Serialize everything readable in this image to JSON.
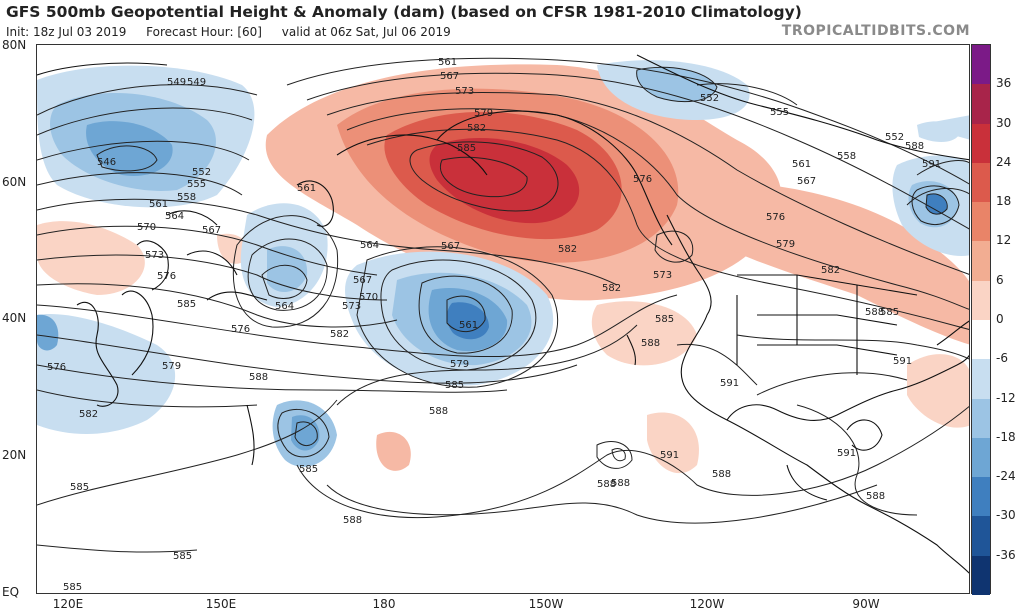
{
  "title": "GFS 500mb Geopotential Height & Anomaly (dam) (based on CFSR 1981-2010 Climatology)",
  "init": "Init: 18z Jul 03 2019",
  "forecast_hour": "Forecast Hour: [60]",
  "valid": "valid at 06z Sat, Jul 06 2019",
  "watermark": "TROPICALTIDBITS.COM",
  "lat_labels": [
    "80N",
    "60N",
    "40N",
    "20N",
    "EQ"
  ],
  "lon_labels": [
    "120E",
    "150E",
    "180",
    "150W",
    "120W",
    "90W"
  ],
  "colorbar": {
    "labels": [
      "36",
      "30",
      "24",
      "18",
      "12",
      "6",
      "0",
      "-6",
      "-12",
      "-18",
      "-24",
      "-30",
      "-36"
    ],
    "colors": [
      "#7b1a87",
      "#a8244a",
      "#c9303a",
      "#dc5a4c",
      "#e98468",
      "#f2ad92",
      "#fad4c5",
      "#ffffff",
      "#c8def0",
      "#9cc4e4",
      "#6ea6d4",
      "#3f7fbf",
      "#1f5598",
      "#0f3470"
    ]
  },
  "contour_labels": [
    {
      "t": "549"
    },
    {
      "t": "549"
    },
    {
      "t": "546"
    },
    {
      "t": "552"
    },
    {
      "t": "555"
    },
    {
      "t": "558"
    },
    {
      "t": "561"
    },
    {
      "t": "564"
    },
    {
      "t": "567"
    },
    {
      "t": "570"
    },
    {
      "t": "573"
    },
    {
      "t": "576"
    },
    {
      "t": "579"
    },
    {
      "t": "576"
    },
    {
      "t": "582"
    },
    {
      "t": "561"
    },
    {
      "t": "564"
    },
    {
      "t": "567"
    },
    {
      "t": "570"
    },
    {
      "t": "573"
    },
    {
      "t": "576"
    },
    {
      "t": "582"
    },
    {
      "t": "564"
    },
    {
      "t": "567"
    },
    {
      "t": "561"
    },
    {
      "t": "579"
    },
    {
      "t": "585"
    },
    {
      "t": "588"
    },
    {
      "t": "588"
    },
    {
      "t": "585"
    },
    {
      "t": "585"
    },
    {
      "t": "585"
    },
    {
      "t": "588"
    },
    {
      "t": "561"
    },
    {
      "t": "567"
    },
    {
      "t": "573"
    },
    {
      "t": "579"
    },
    {
      "t": "582"
    },
    {
      "t": "585"
    },
    {
      "t": "582"
    },
    {
      "t": "573"
    },
    {
      "t": "576"
    },
    {
      "t": "582"
    },
    {
      "t": "585"
    },
    {
      "t": "588"
    },
    {
      "t": "588"
    },
    {
      "t": "591"
    },
    {
      "t": "591"
    },
    {
      "t": "588"
    },
    {
      "t": "555"
    },
    {
      "t": "552"
    },
    {
      "t": "558"
    },
    {
      "t": "561"
    },
    {
      "t": "567"
    },
    {
      "t": "576"
    },
    {
      "t": "579"
    },
    {
      "t": "582"
    },
    {
      "t": "585"
    },
    {
      "t": "588"
    },
    {
      "t": "591"
    },
    {
      "t": "591"
    },
    {
      "t": "588"
    },
    {
      "t": "552"
    },
    {
      "t": "588"
    },
    {
      "t": "591"
    },
    {
      "t": "585"
    },
    {
      "t": "585"
    },
    {
      "t": "588"
    }
  ]
}
